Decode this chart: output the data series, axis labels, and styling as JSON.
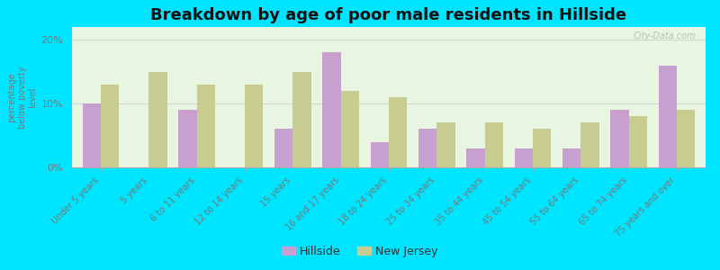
{
  "title": "Breakdown by age of poor male residents in Hillside",
  "ylabel": "percentage\nbelow poverty\nlevel",
  "categories": [
    "Under 5 years",
    "5 years",
    "6 to 11 years",
    "12 to 14 years",
    "15 years",
    "16 and 17 years",
    "18 to 24 years",
    "25 to 34 years",
    "35 to 44 years",
    "45 to 54 years",
    "55 to 64 years",
    "65 to 74 years",
    "75 years and over"
  ],
  "hillside_values": [
    10.0,
    0.0,
    9.0,
    0.0,
    6.0,
    18.0,
    4.0,
    6.0,
    3.0,
    3.0,
    3.0,
    9.0,
    16.0
  ],
  "nj_values": [
    13.0,
    15.0,
    13.0,
    13.0,
    15.0,
    12.0,
    11.0,
    7.0,
    7.0,
    6.0,
    7.0,
    8.0,
    9.0
  ],
  "hillside_color": "#c8a0d0",
  "nj_color": "#c8cc90",
  "background_color": "#e8f5e0",
  "outer_bg": "#00e5ff",
  "ylim": [
    0,
    22
  ],
  "yticks": [
    0,
    10,
    20
  ],
  "ytick_labels": [
    "0%",
    "10%",
    "20%"
  ],
  "title_fontsize": 13,
  "legend_labels": [
    "Hillside",
    "New Jersey"
  ],
  "bar_width": 0.38,
  "watermark": "City-Data.com"
}
